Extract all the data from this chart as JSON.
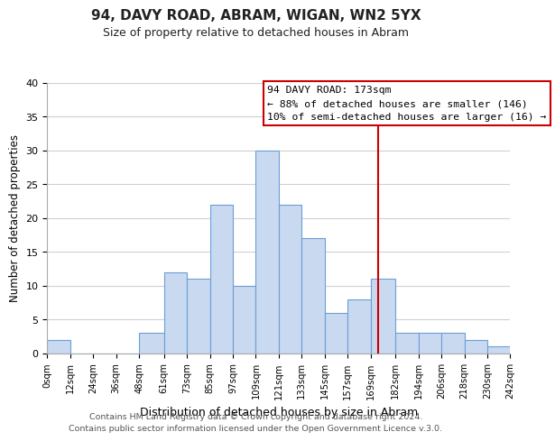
{
  "title": "94, DAVY ROAD, ABRAM, WIGAN, WN2 5YX",
  "subtitle": "Size of property relative to detached houses in Abram",
  "xlabel": "Distribution of detached houses by size in Abram",
  "ylabel": "Number of detached properties",
  "bin_edges": [
    0,
    12,
    24,
    36,
    48,
    61,
    73,
    85,
    97,
    109,
    121,
    133,
    145,
    157,
    169,
    182,
    194,
    206,
    218,
    230,
    242
  ],
  "bin_counts": [
    2,
    0,
    0,
    0,
    3,
    12,
    11,
    22,
    10,
    30,
    22,
    17,
    6,
    8,
    11,
    3,
    3,
    3,
    2,
    1
  ],
  "bar_color": "#c9d9ef",
  "bar_edge_color": "#6a9fd8",
  "vline_x": 173,
  "vline_color": "#cc0000",
  "annotation_title": "94 DAVY ROAD: 173sqm",
  "annotation_line1": "← 88% of detached houses are smaller (146)",
  "annotation_line2": "10% of semi-detached houses are larger (16) →",
  "annotation_box_color": "#cc0000",
  "footer_line1": "Contains HM Land Registry data © Crown copyright and database right 2024.",
  "footer_line2": "Contains public sector information licensed under the Open Government Licence v.3.0.",
  "ylim": [
    0,
    40
  ],
  "xlim": [
    0,
    242
  ],
  "tick_labels": [
    "0sqm",
    "12sqm",
    "24sqm",
    "36sqm",
    "48sqm",
    "61sqm",
    "73sqm",
    "85sqm",
    "97sqm",
    "109sqm",
    "121sqm",
    "133sqm",
    "145sqm",
    "157sqm",
    "169sqm",
    "182sqm",
    "194sqm",
    "206sqm",
    "218sqm",
    "230sqm",
    "242sqm"
  ],
  "tick_positions": [
    0,
    12,
    24,
    36,
    48,
    61,
    73,
    85,
    97,
    109,
    121,
    133,
    145,
    157,
    169,
    182,
    194,
    206,
    218,
    230,
    242
  ],
  "background_color": "#ffffff",
  "grid_color": "#d0d0d0"
}
